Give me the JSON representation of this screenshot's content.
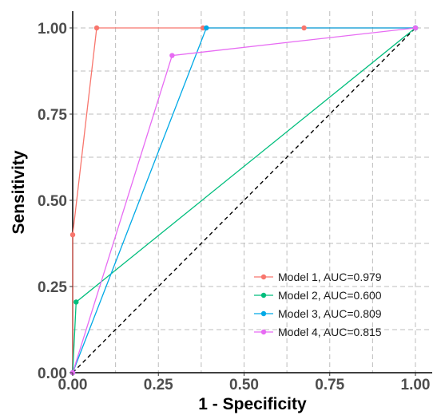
{
  "chart_data": {
    "type": "line",
    "xlabel": "1 - Specificity",
    "ylabel": "Sensitivity",
    "xlim": [
      0,
      1
    ],
    "ylim": [
      0,
      1
    ],
    "x_ticks": [
      "0.00",
      "0.25",
      "0.50",
      "0.75",
      "1.00"
    ],
    "y_ticks": [
      "0.00",
      "0.25",
      "0.50",
      "0.75",
      "1.00"
    ],
    "grid": true,
    "legend_position": "bottom-right",
    "reference_line": {
      "style": "dashed",
      "color": "#000000",
      "from": [
        0,
        0
      ],
      "to": [
        1,
        1
      ]
    },
    "series": [
      {
        "name": "Model 1, AUC=0.979",
        "color": "#F8766D",
        "points": [
          [
            0,
            0
          ],
          [
            0,
            0.4
          ],
          [
            0.07,
            1.0
          ],
          [
            0.38,
            1.0
          ],
          [
            0.675,
            1.0
          ],
          [
            1.0,
            1.0
          ]
        ]
      },
      {
        "name": "Model 2, AUC=0.600",
        "color": "#00BE7D",
        "points": [
          [
            0,
            0
          ],
          [
            0.01,
            0.205
          ],
          [
            1.0,
            1.0
          ]
        ]
      },
      {
        "name": "Model 3, AUC=0.809",
        "color": "#00A9E6",
        "points": [
          [
            0,
            0
          ],
          [
            0.39,
            1.0
          ],
          [
            1.0,
            1.0
          ]
        ]
      },
      {
        "name": "Model 4, AUC=0.815",
        "color": "#E76BF3",
        "points": [
          [
            0,
            0
          ],
          [
            0.29,
            0.92
          ],
          [
            1.0,
            1.0
          ]
        ]
      }
    ]
  }
}
